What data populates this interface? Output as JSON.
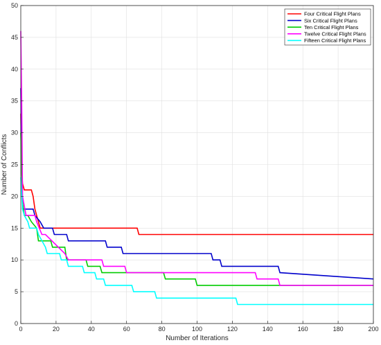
{
  "chart_data": {
    "type": "line",
    "title": "",
    "xlabel": "Number of Iterations",
    "ylabel": "Number of Conflicts",
    "xlim": [
      0,
      200
    ],
    "ylim": [
      0,
      50
    ],
    "xticks": [
      0,
      20,
      40,
      60,
      80,
      100,
      120,
      140,
      160,
      180,
      200
    ],
    "yticks": [
      0,
      5,
      10,
      15,
      20,
      25,
      30,
      35,
      40,
      45,
      50
    ],
    "grid": true,
    "legend_position": "top-right",
    "series": [
      {
        "name": "Four Critical Flight Plans",
        "color": "#ff0000",
        "x": [
          0,
          0.5,
          1,
          2,
          6,
          7,
          7.5,
          8,
          9,
          10,
          11,
          12,
          66,
          67,
          200
        ],
        "y": [
          33,
          24,
          22,
          21,
          21,
          20,
          19,
          18,
          17,
          16,
          15,
          15,
          15,
          14,
          14
        ]
      },
      {
        "name": "Six Critical Flight Plans",
        "color": "#0000cc",
        "x": [
          0,
          0.5,
          1,
          4,
          7,
          8,
          11,
          13,
          18,
          19,
          26,
          27,
          48,
          49,
          57,
          58,
          108,
          109,
          113,
          114,
          146,
          147,
          200
        ],
        "y": [
          37,
          25,
          18,
          18,
          18,
          17,
          16,
          15,
          15,
          14,
          14,
          13,
          13,
          12,
          12,
          11,
          11,
          10,
          10,
          9,
          9,
          8,
          7
        ]
      },
      {
        "name": "Ten Critical Flight Plans",
        "color": "#00cc00",
        "x": [
          0,
          1,
          2,
          4,
          6,
          9,
          10,
          17,
          18,
          25,
          26,
          37,
          38,
          45,
          46,
          81,
          82,
          99,
          100,
          200
        ],
        "y": [
          30,
          19,
          17,
          17,
          16,
          15,
          13,
          13,
          12,
          12,
          10,
          10,
          9,
          9,
          8,
          8,
          7,
          7,
          6,
          6
        ]
      },
      {
        "name": "Twelve Critical Flight Plans",
        "color": "#ff00ff",
        "x": [
          0,
          0.5,
          1,
          3,
          8,
          9,
          12,
          14,
          25,
          27,
          46,
          47,
          59,
          60,
          133,
          134,
          146,
          147,
          200
        ],
        "y": [
          46,
          35,
          20,
          17,
          17,
          16,
          14,
          14,
          11,
          10,
          10,
          9,
          9,
          8,
          8,
          7,
          7,
          6,
          6
        ]
      },
      {
        "name": "Fifteen Critical Flight Plans",
        "color": "#00ffff",
        "x": [
          0,
          1,
          2,
          4,
          5,
          9,
          10,
          14,
          15,
          22,
          23,
          26,
          27,
          35,
          36,
          42,
          43,
          47,
          48,
          63,
          64,
          76,
          77,
          122,
          123,
          200
        ],
        "y": [
          23,
          18,
          17,
          16,
          15,
          15,
          14,
          12,
          11,
          11,
          10,
          10,
          9,
          9,
          8,
          8,
          7,
          7,
          6,
          6,
          5,
          5,
          4,
          4,
          3,
          3
        ]
      }
    ]
  }
}
